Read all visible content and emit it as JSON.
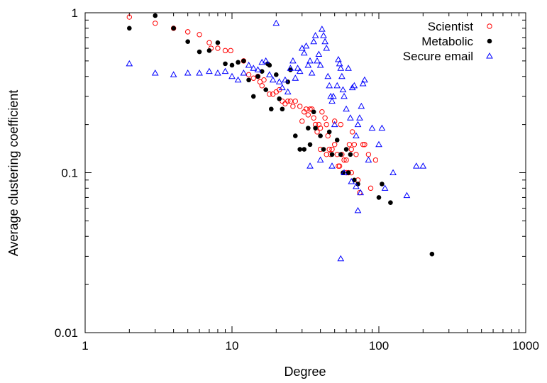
{
  "chart_data": {
    "type": "scatter",
    "xlabel": "Degree",
    "ylabel": "Average clustering coefficient",
    "xscale": "log",
    "yscale": "log",
    "xlim": [
      1,
      1000
    ],
    "ylim": [
      0.01,
      1
    ],
    "x_ticks": [
      1,
      10,
      100,
      1000
    ],
    "x_tick_labels": [
      "1",
      "10",
      "100",
      "1000"
    ],
    "y_ticks": [
      0.01,
      0.1,
      1
    ],
    "y_tick_labels": [
      "0.01",
      "0.1",
      "1"
    ],
    "grid": false,
    "legend_position": "top-right",
    "series": [
      {
        "name": "Scientist",
        "marker": "open-circle",
        "color": "#ff0000",
        "points": [
          [
            2,
            0.94
          ],
          [
            3,
            0.86
          ],
          [
            4,
            0.8
          ],
          [
            5,
            0.76
          ],
          [
            6,
            0.73
          ],
          [
            7,
            0.65
          ],
          [
            7.2,
            0.6
          ],
          [
            8,
            0.6
          ],
          [
            9,
            0.58
          ],
          [
            9.8,
            0.58
          ],
          [
            12,
            0.5
          ],
          [
            13,
            0.41
          ],
          [
            14,
            0.39
          ],
          [
            15,
            0.4
          ],
          [
            15.5,
            0.37
          ],
          [
            16,
            0.35
          ],
          [
            16.5,
            0.38
          ],
          [
            18,
            0.31
          ],
          [
            19,
            0.31
          ],
          [
            20,
            0.32
          ],
          [
            21,
            0.33
          ],
          [
            22,
            0.28
          ],
          [
            23,
            0.27
          ],
          [
            24,
            0.28
          ],
          [
            25,
            0.28
          ],
          [
            26,
            0.26
          ],
          [
            27,
            0.28
          ],
          [
            29,
            0.26
          ],
          [
            30,
            0.21
          ],
          [
            31,
            0.24
          ],
          [
            32,
            0.25
          ],
          [
            33,
            0.23
          ],
          [
            34,
            0.25
          ],
          [
            35,
            0.25
          ],
          [
            36,
            0.22
          ],
          [
            37,
            0.2
          ],
          [
            38,
            0.18
          ],
          [
            39,
            0.2
          ],
          [
            40,
            0.19
          ],
          [
            41,
            0.24
          ],
          [
            43,
            0.22
          ],
          [
            44,
            0.2
          ],
          [
            45,
            0.17
          ],
          [
            46,
            0.14
          ],
          [
            47,
            0.13
          ],
          [
            48,
            0.14
          ],
          [
            50,
            0.15
          ],
          [
            52,
            0.13
          ],
          [
            53,
            0.11
          ],
          [
            54,
            0.11
          ],
          [
            56,
            0.13
          ],
          [
            58,
            0.12
          ],
          [
            60,
            0.1
          ],
          [
            62,
            0.1
          ],
          [
            63,
            0.15
          ],
          [
            65,
            0.14
          ],
          [
            66,
            0.18
          ],
          [
            68,
            0.15
          ],
          [
            70,
            0.13
          ],
          [
            72,
            0.09
          ],
          [
            74,
            0.075
          ],
          [
            78,
            0.15
          ],
          [
            80,
            0.15
          ],
          [
            85,
            0.13
          ],
          [
            88,
            0.08
          ],
          [
            95,
            0.12
          ],
          [
            40,
            0.14
          ],
          [
            44,
            0.13
          ],
          [
            50,
            0.21
          ],
          [
            55,
            0.2
          ],
          [
            60,
            0.12
          ],
          [
            65,
            0.1
          ]
        ]
      },
      {
        "name": "Metabolic",
        "marker": "filled-circle",
        "color": "#000000",
        "points": [
          [
            2,
            0.8
          ],
          [
            3,
            0.96
          ],
          [
            4,
            0.8
          ],
          [
            5,
            0.66
          ],
          [
            6,
            0.57
          ],
          [
            7,
            0.58
          ],
          [
            8,
            0.65
          ],
          [
            9,
            0.48
          ],
          [
            10,
            0.47
          ],
          [
            11,
            0.49
          ],
          [
            12,
            0.5
          ],
          [
            13,
            0.38
          ],
          [
            14,
            0.3
          ],
          [
            15,
            0.4
          ],
          [
            16,
            0.43
          ],
          [
            17,
            0.33
          ],
          [
            17.5,
            0.48
          ],
          [
            18,
            0.47
          ],
          [
            18.5,
            0.25
          ],
          [
            20,
            0.41
          ],
          [
            21,
            0.29
          ],
          [
            22,
            0.25
          ],
          [
            24,
            0.37
          ],
          [
            25,
            0.44
          ],
          [
            27,
            0.17
          ],
          [
            29,
            0.14
          ],
          [
            31,
            0.14
          ],
          [
            33,
            0.19
          ],
          [
            34,
            0.15
          ],
          [
            36,
            0.24
          ],
          [
            37,
            0.19
          ],
          [
            40,
            0.17
          ],
          [
            42,
            0.14
          ],
          [
            46,
            0.18
          ],
          [
            48,
            0.13
          ],
          [
            52,
            0.16
          ],
          [
            55,
            0.13
          ],
          [
            57,
            0.1
          ],
          [
            60,
            0.14
          ],
          [
            62,
            0.1
          ],
          [
            64,
            0.13
          ],
          [
            68,
            0.09
          ],
          [
            72,
            0.085
          ],
          [
            100,
            0.07
          ],
          [
            105,
            0.085
          ],
          [
            120,
            0.065
          ],
          [
            230,
            0.031
          ]
        ]
      },
      {
        "name": "Secure email",
        "marker": "open-triangle",
        "color": "#0000ff",
        "points": [
          [
            2,
            0.48
          ],
          [
            3,
            0.42
          ],
          [
            4,
            0.41
          ],
          [
            5,
            0.42
          ],
          [
            6,
            0.42
          ],
          [
            7,
            0.43
          ],
          [
            8,
            0.42
          ],
          [
            9,
            0.43
          ],
          [
            10,
            0.4
          ],
          [
            11,
            0.38
          ],
          [
            12,
            0.42
          ],
          [
            13,
            0.47
          ],
          [
            14,
            0.45
          ],
          [
            15,
            0.44
          ],
          [
            16,
            0.49
          ],
          [
            17,
            0.5
          ],
          [
            18,
            0.41
          ],
          [
            19,
            0.38
          ],
          [
            20,
            0.86
          ],
          [
            21,
            0.37
          ],
          [
            22,
            0.34
          ],
          [
            23,
            0.38
          ],
          [
            24,
            0.32
          ],
          [
            25,
            0.45
          ],
          [
            26,
            0.5
          ],
          [
            27,
            0.39
          ],
          [
            28,
            0.45
          ],
          [
            29,
            0.43
          ],
          [
            30,
            0.6
          ],
          [
            31,
            0.56
          ],
          [
            32,
            0.62
          ],
          [
            33,
            0.47
          ],
          [
            34,
            0.5
          ],
          [
            35,
            0.42
          ],
          [
            36,
            0.66
          ],
          [
            37,
            0.72
          ],
          [
            38,
            0.5
          ],
          [
            39,
            0.55
          ],
          [
            40,
            0.47
          ],
          [
            41,
            0.79
          ],
          [
            42,
            0.72
          ],
          [
            43,
            0.66
          ],
          [
            44,
            0.6
          ],
          [
            45,
            0.4
          ],
          [
            46,
            0.35
          ],
          [
            47,
            0.3
          ],
          [
            48,
            0.28
          ],
          [
            49,
            0.3
          ],
          [
            50,
            0.2
          ],
          [
            52,
            0.35
          ],
          [
            53,
            0.51
          ],
          [
            54,
            0.48
          ],
          [
            55,
            0.45
          ],
          [
            56,
            0.4
          ],
          [
            57,
            0.33
          ],
          [
            58,
            0.3
          ],
          [
            60,
            0.25
          ],
          [
            62,
            0.45
          ],
          [
            64,
            0.22
          ],
          [
            66,
            0.34
          ],
          [
            68,
            0.35
          ],
          [
            70,
            0.17
          ],
          [
            72,
            0.2
          ],
          [
            74,
            0.22
          ],
          [
            76,
            0.26
          ],
          [
            78,
            0.36
          ],
          [
            80,
            0.38
          ],
          [
            85,
            0.12
          ],
          [
            90,
            0.19
          ],
          [
            100,
            0.15
          ],
          [
            105,
            0.19
          ],
          [
            110,
            0.08
          ],
          [
            155,
            0.072
          ],
          [
            180,
            0.11
          ],
          [
            55,
            0.029
          ],
          [
            72,
            0.058
          ],
          [
            34,
            0.11
          ],
          [
            40,
            0.12
          ],
          [
            48,
            0.11
          ],
          [
            58,
            0.1
          ],
          [
            65,
            0.088
          ],
          [
            70,
            0.082
          ],
          [
            75,
            0.075
          ],
          [
            125,
            0.1
          ],
          [
            200,
            0.11
          ]
        ]
      }
    ]
  }
}
